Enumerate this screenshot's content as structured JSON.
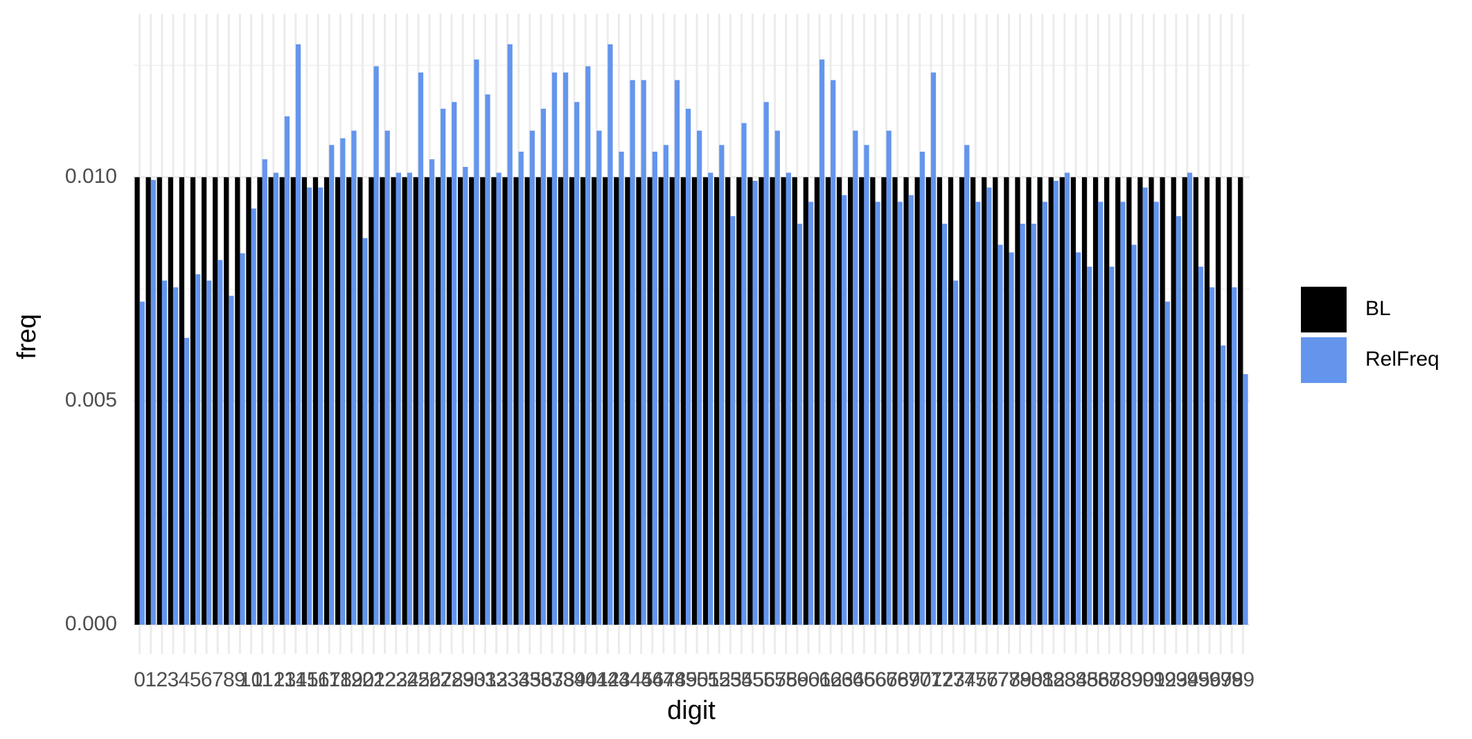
{
  "chart_data": {
    "type": "bar",
    "x_label": "digit",
    "y_label": "freq",
    "categories": [
      "0",
      "1",
      "2",
      "3",
      "4",
      "5",
      "6",
      "7",
      "8",
      "9",
      "10",
      "11",
      "12",
      "13",
      "14",
      "15",
      "16",
      "17",
      "18",
      "19",
      "20",
      "21",
      "22",
      "23",
      "24",
      "25",
      "26",
      "27",
      "28",
      "29",
      "30",
      "31",
      "32",
      "33",
      "34",
      "35",
      "36",
      "37",
      "38",
      "39",
      "40",
      "41",
      "42",
      "43",
      "44",
      "45",
      "46",
      "47",
      "48",
      "49",
      "50",
      "51",
      "52",
      "53",
      "54",
      "55",
      "56",
      "57",
      "58",
      "59",
      "60",
      "61",
      "62",
      "63",
      "64",
      "65",
      "66",
      "67",
      "68",
      "69",
      "70",
      "71",
      "72",
      "73",
      "74",
      "75",
      "76",
      "77",
      "78",
      "79",
      "80",
      "81",
      "82",
      "83",
      "84",
      "85",
      "86",
      "87",
      "88",
      "89",
      "90",
      "91",
      "92",
      "93",
      "94",
      "95",
      "96",
      "97",
      "98",
      "99"
    ],
    "series": [
      {
        "name": "BL",
        "color": "#000000",
        "values": [
          0.01,
          0.01,
          0.01,
          0.01,
          0.01,
          0.01,
          0.01,
          0.01,
          0.01,
          0.01,
          0.01,
          0.01,
          0.01,
          0.01,
          0.01,
          0.01,
          0.01,
          0.01,
          0.01,
          0.01,
          0.01,
          0.01,
          0.01,
          0.01,
          0.01,
          0.01,
          0.01,
          0.01,
          0.01,
          0.01,
          0.01,
          0.01,
          0.01,
          0.01,
          0.01,
          0.01,
          0.01,
          0.01,
          0.01,
          0.01,
          0.01,
          0.01,
          0.01,
          0.01,
          0.01,
          0.01,
          0.01,
          0.01,
          0.01,
          0.01,
          0.01,
          0.01,
          0.01,
          0.01,
          0.01,
          0.01,
          0.01,
          0.01,
          0.01,
          0.01,
          0.01,
          0.01,
          0.01,
          0.01,
          0.01,
          0.01,
          0.01,
          0.01,
          0.01,
          0.01,
          0.01,
          0.01,
          0.01,
          0.01,
          0.01,
          0.01,
          0.01,
          0.01,
          0.01,
          0.01,
          0.01,
          0.01,
          0.01,
          0.01,
          0.01,
          0.01,
          0.01,
          0.01,
          0.01,
          0.01,
          0.01,
          0.01,
          0.01,
          0.01,
          0.01,
          0.01,
          0.01,
          0.01,
          0.01,
          0.01
        ]
      },
      {
        "name": "RelFreq",
        "color": "#6495ED",
        "values": [
          0.00722,
          0.00994,
          0.00769,
          0.00754,
          0.00641,
          0.00783,
          0.00769,
          0.00815,
          0.00735,
          0.0083,
          0.0093,
          0.0104,
          0.0101,
          0.01136,
          0.01297,
          0.00977,
          0.00977,
          0.01072,
          0.01087,
          0.01104,
          0.00864,
          0.01248,
          0.01104,
          0.0101,
          0.0101,
          0.01234,
          0.0104,
          0.01153,
          0.01168,
          0.01023,
          0.01263,
          0.01185,
          0.0101,
          0.01297,
          0.01057,
          0.01104,
          0.01153,
          0.01234,
          0.01234,
          0.01168,
          0.01248,
          0.01104,
          0.01297,
          0.01057,
          0.01217,
          0.01217,
          0.01057,
          0.01072,
          0.01217,
          0.01153,
          0.01104,
          0.0101,
          0.01072,
          0.00913,
          0.01121,
          0.00992,
          0.01168,
          0.01104,
          0.0101,
          0.00896,
          0.00945,
          0.01263,
          0.01217,
          0.0096,
          0.01104,
          0.01072,
          0.00945,
          0.01104,
          0.00945,
          0.0096,
          0.01057,
          0.01234,
          0.00896,
          0.00769,
          0.01072,
          0.00945,
          0.00977,
          0.00849,
          0.00832,
          0.00896,
          0.00896,
          0.00945,
          0.00992,
          0.0101,
          0.00832,
          0.008,
          0.00945,
          0.008,
          0.00945,
          0.00849,
          0.00977,
          0.00945,
          0.00722,
          0.00913,
          0.0101,
          0.008,
          0.00754,
          0.00624,
          0.00754,
          0.0056
        ]
      }
    ],
    "ylim": [
      -0.00065,
      0.01365
    ],
    "yticks": [
      {
        "value": 0,
        "label": "0.000"
      },
      0.005,
      {
        "value": 0.01,
        "label": "0.010"
      }
    ],
    "grid": true,
    "legend": "right"
  }
}
